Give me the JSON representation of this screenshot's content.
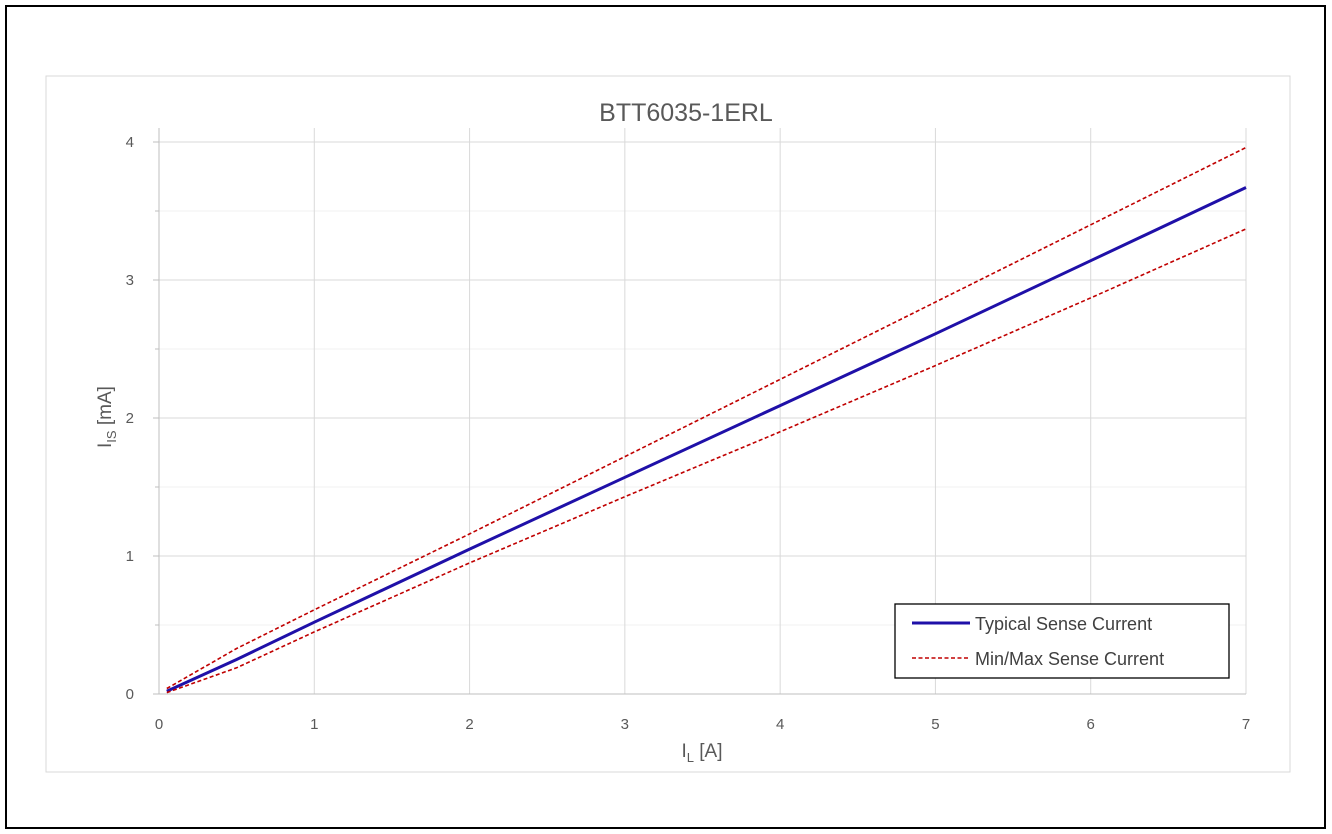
{
  "chart_data": {
    "type": "line",
    "title": "BTT6035-1ERL",
    "xlabel": "I",
    "xlabel_sub": "L",
    "xlabel_unit": " [A]",
    "ylabel": "I",
    "ylabel_sub": "IS",
    "ylabel_unit": " [mA]",
    "xlim": [
      0,
      7
    ],
    "ylim": [
      0,
      4
    ],
    "x_ticks": [
      "0",
      "1",
      "2",
      "3",
      "4",
      "5",
      "6",
      "7"
    ],
    "y_ticks": [
      "0",
      "1",
      "2",
      "3",
      "4"
    ],
    "grid": true,
    "legend_position": "bottom-right",
    "series": [
      {
        "name": "Typical Sense Current",
        "color": "#1f10a8",
        "style": "solid",
        "x": [
          0.05,
          0.5,
          1,
          2,
          3,
          4,
          5,
          6,
          7
        ],
        "y": [
          0.02,
          0.25,
          0.52,
          1.05,
          1.57,
          2.09,
          2.61,
          3.14,
          3.67
        ]
      },
      {
        "name": "Min/Max Sense Current",
        "color": "#c00000",
        "style": "dashed",
        "x": [
          0.05,
          0.5,
          1,
          2,
          3,
          4,
          5,
          6,
          7
        ],
        "y": [
          0.04,
          0.33,
          0.61,
          1.16,
          1.72,
          2.28,
          2.84,
          3.4,
          3.96
        ]
      },
      {
        "name": "",
        "color": "#c00000",
        "style": "dashed",
        "x": [
          0.05,
          0.5,
          1,
          2,
          3,
          4,
          5,
          6,
          7
        ],
        "y": [
          0.01,
          0.19,
          0.45,
          0.95,
          1.43,
          1.9,
          2.38,
          2.87,
          3.37
        ]
      }
    ]
  }
}
